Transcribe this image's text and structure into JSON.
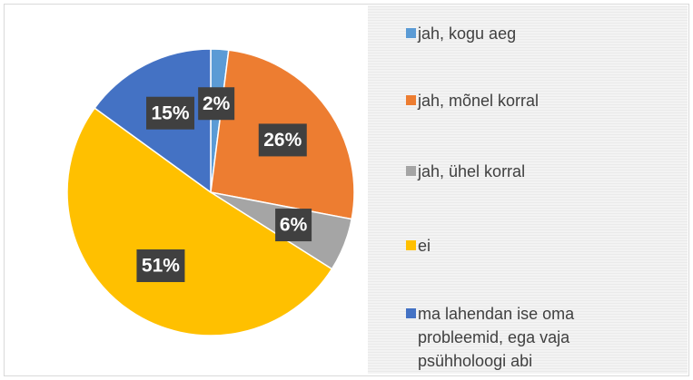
{
  "chart_data": {
    "type": "pie",
    "categories": [
      "jah, kogu aeg",
      "jah, mõnel korral",
      "jah, ühel korral",
      "ei",
      "ma lahendan ise oma probleemid, ega vaja psühholoogi abi"
    ],
    "values": [
      2,
      26,
      6,
      51,
      15
    ],
    "value_labels": [
      "2%",
      "26%",
      "6%",
      "51%",
      "15%"
    ],
    "colors": [
      "#5b9bd5",
      "#ed7d31",
      "#a5a5a5",
      "#ffc000",
      "#4472c4"
    ],
    "legend": "right"
  }
}
